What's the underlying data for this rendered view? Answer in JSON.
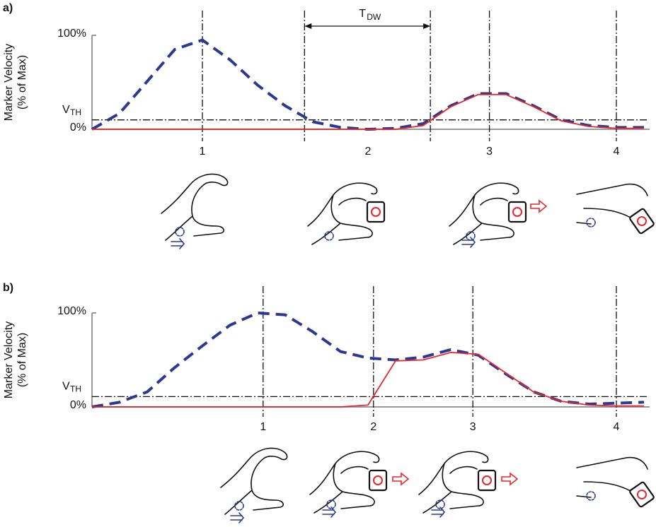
{
  "chart_data": [
    {
      "type": "line",
      "panel_label": "a)",
      "ylabel": [
        "Marker Velocity",
        "(% of Max)"
      ],
      "x": [
        0,
        5,
        10,
        15,
        20,
        25,
        30,
        35,
        40,
        45,
        50,
        55,
        60,
        65,
        70,
        75,
        80,
        85,
        90,
        95,
        100
      ],
      "xlim": [
        0,
        100
      ],
      "ylim": [
        0,
        100
      ],
      "xticks": [
        {
          "value": 20,
          "label": "1"
        },
        {
          "value": 50,
          "label": "2"
        },
        {
          "value": 72,
          "label": "3"
        },
        {
          "value": 95,
          "label": "4"
        }
      ],
      "yticks": [
        {
          "value": 0,
          "label": "0%"
        },
        {
          "value": 100,
          "label": "100%"
        }
      ],
      "threshold": {
        "value": 10,
        "label": "V",
        "sub": "TH"
      },
      "event_lines": [
        20,
        38.5,
        61.3,
        72,
        95
      ],
      "interval": {
        "from": 38.5,
        "to": 61.3,
        "label": "T",
        "sub": "DW"
      },
      "series": [
        {
          "color": "#2b3990",
          "dash": "dashed",
          "values": [
            0,
            17,
            51,
            85,
            95,
            74,
            47,
            25,
            8,
            2,
            0,
            1,
            6,
            25,
            38,
            38,
            25,
            10,
            4,
            2,
            2
          ]
        },
        {
          "color": "#e8262a",
          "dash": "solid",
          "values": [
            0,
            0,
            0,
            0,
            0,
            0,
            0,
            0,
            0,
            0,
            0,
            0,
            4,
            24,
            37,
            37,
            24,
            9,
            3,
            1,
            1
          ]
        }
      ]
    },
    {
      "type": "line",
      "panel_label": "b)",
      "ylabel": [
        "Marker Velocity",
        "(% of Max)"
      ],
      "x": [
        0,
        5,
        10,
        15,
        20,
        25,
        30,
        35,
        40,
        45,
        50,
        55,
        60,
        65,
        70,
        75,
        80,
        85,
        90,
        95,
        100
      ],
      "xlim": [
        0,
        100
      ],
      "ylim": [
        0,
        100
      ],
      "xticks": [
        {
          "value": 31,
          "label": "1"
        },
        {
          "value": 51,
          "label": "2"
        },
        {
          "value": 69,
          "label": "3"
        },
        {
          "value": 95,
          "label": "4"
        }
      ],
      "yticks": [
        {
          "value": 0,
          "label": "0%"
        },
        {
          "value": 100,
          "label": "100%"
        }
      ],
      "threshold": {
        "value": 11,
        "label": "V",
        "sub": "TH"
      },
      "event_lines": [
        31,
        51,
        69,
        95
      ],
      "series": [
        {
          "color": "#2b3990",
          "dash": "dashed",
          "values": [
            0,
            5,
            16,
            42,
            65,
            87,
            100,
            98,
            80,
            59,
            52,
            50,
            53,
            61,
            55,
            35,
            16,
            6,
            3,
            4,
            5
          ]
        },
        {
          "color": "#e8262a",
          "dash": "solid",
          "values": [
            0,
            0,
            0,
            0,
            0,
            0,
            0,
            0,
            0,
            0,
            2,
            49,
            50,
            58,
            56,
            36,
            16,
            6,
            2,
            1,
            1
          ]
        }
      ]
    }
  ]
}
